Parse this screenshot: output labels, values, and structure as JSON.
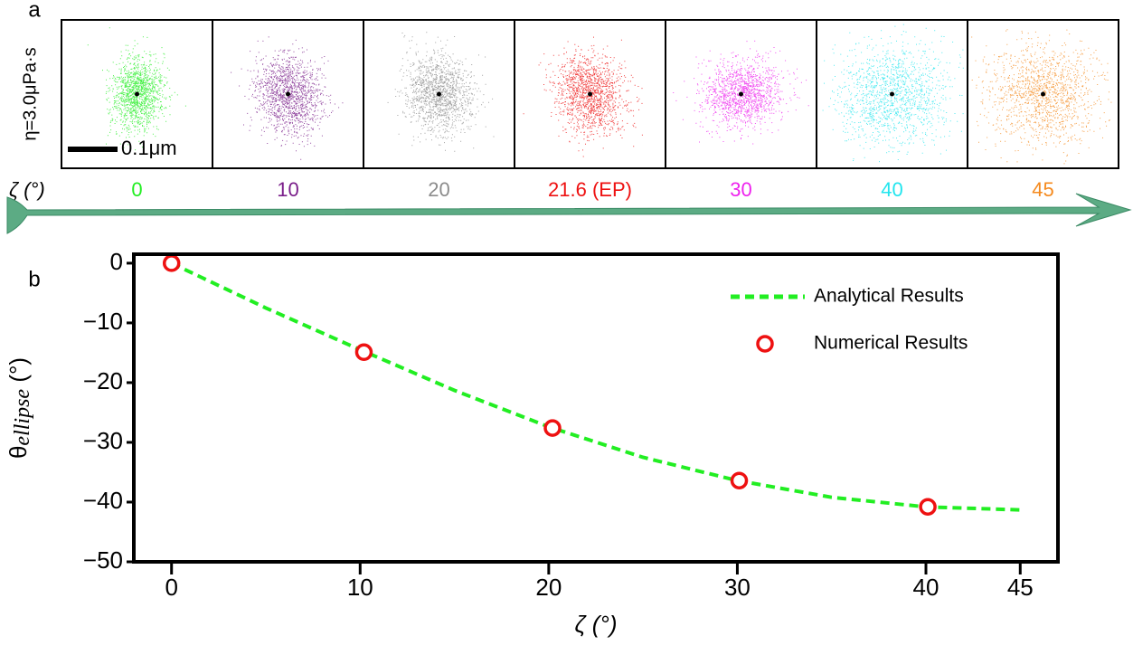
{
  "panel_a": {
    "letter": "a",
    "eta_label": "η=3.0μPa·s",
    "scale_label": "0.1μm",
    "axis_label": "ζ (°)",
    "panels": [
      {
        "label": "0",
        "color": "#22ee22"
      },
      {
        "label": "10",
        "color": "#7a1e8a"
      },
      {
        "label": "20",
        "color": "#8c8c8c"
      },
      {
        "label": "21.6 (EP)",
        "color": "#ee1111"
      },
      {
        "label": "30",
        "color": "#ee22ee"
      },
      {
        "label": "40",
        "color": "#22e5ee"
      },
      {
        "label": "45",
        "color": "#f58a1e"
      }
    ]
  },
  "chart_data": {
    "type": "line",
    "letter": "b",
    "x_label": "ζ (°)",
    "y_label": {
      "symbol": "θ",
      "sub": "ellipse",
      "unit": " (°)"
    },
    "xlim": [
      -2,
      47
    ],
    "ylim": [
      -50,
      1.5
    ],
    "xticks": [
      0,
      10,
      20,
      30,
      40,
      45
    ],
    "yticks": [
      0,
      {
        "value": -10,
        "label": "−10"
      },
      {
        "value": -20,
        "label": "−20"
      },
      {
        "value": -30,
        "label": "−30"
      },
      {
        "value": -40,
        "label": "−40"
      },
      {
        "value": -50,
        "label": "−50"
      }
    ],
    "series": [
      {
        "name": "Analytical Results",
        "color": "#22ee22",
        "style": "dashed",
        "x": [
          0,
          5,
          10,
          15,
          20,
          25,
          30,
          35,
          40,
          45
        ],
        "values": [
          0,
          -7.5,
          -14.5,
          -21.3,
          -27.4,
          -32.5,
          -36.4,
          -39.2,
          -40.8,
          -41.3
        ]
      },
      {
        "name": "Numerical Results",
        "color": "#ee1111",
        "style": "markers",
        "x": [
          0,
          10.2,
          20.2,
          30.1,
          40.1
        ],
        "values": [
          0,
          -14.9,
          -27.6,
          -36.4,
          -40.8
        ]
      }
    ]
  }
}
